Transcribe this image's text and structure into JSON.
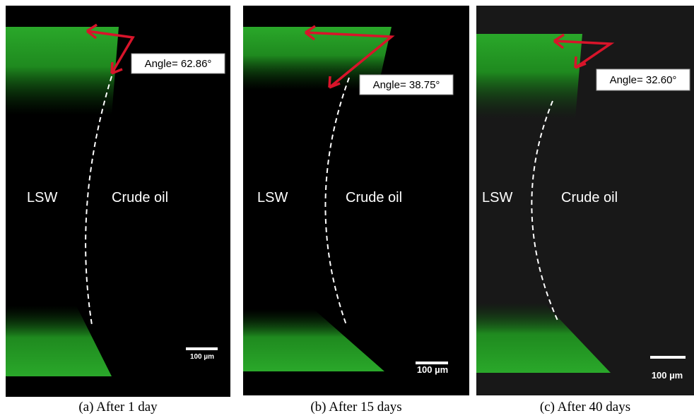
{
  "panels": [
    {
      "angle_label": "Angle= 62.86°",
      "left_label": "LSW",
      "right_label": "Crude oil",
      "scale_label": "100 µm",
      "caption": "(a) After 1 day"
    },
    {
      "angle_label": "Angle= 38.75°",
      "left_label": "LSW",
      "right_label": "Crude oil",
      "scale_label": "100 µm",
      "caption": "(b) After 15 days"
    },
    {
      "angle_label": "Angle= 32.60°",
      "left_label": "LSW",
      "right_label": "Crude oil",
      "scale_label": "100 µm",
      "caption": "(c) After 40 days"
    }
  ]
}
